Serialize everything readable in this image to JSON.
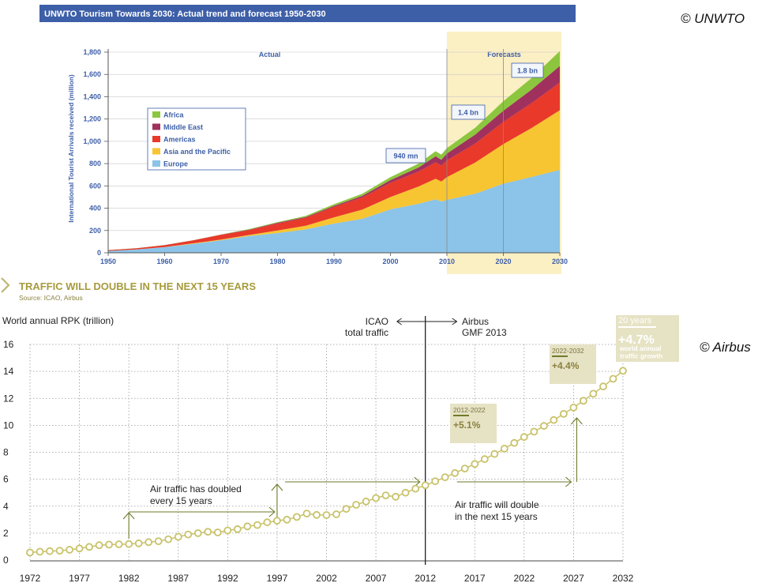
{
  "credits": {
    "top": "© UNWTO",
    "bottom": "© Airbus"
  },
  "chart_data": [
    {
      "type": "area",
      "title": "UNWTO Tourism Towards 2030: Actual trend and forecast 1950-2030",
      "ylabel": "International Tourist Arrivals received (million)",
      "xlabel": "",
      "ylim": [
        0,
        1800
      ],
      "xlim": [
        1950,
        2030
      ],
      "x_ticks": [
        "1950",
        "1960",
        "1970",
        "1980",
        "1990",
        "2000",
        "2010",
        "2020",
        "2030"
      ],
      "y_ticks": [
        "0",
        "200",
        "400",
        "600",
        "800",
        "1,000",
        "1,200",
        "1,400",
        "1,600",
        "1,800"
      ],
      "regions": {
        "actual": "Actual",
        "forecasts": "Forecasts",
        "forecast_start": 2010
      },
      "grid": true,
      "legend_position": "top-left",
      "x": [
        1950,
        1955,
        1960,
        1965,
        1970,
        1975,
        1980,
        1985,
        1990,
        1995,
        2000,
        2005,
        2008,
        2009,
        2010,
        2015,
        2020,
        2025,
        2030
      ],
      "series": [
        {
          "name": "Europe",
          "color": "#8cc3e8",
          "values": [
            17,
            30,
            50,
            80,
            113,
            150,
            177,
            210,
            262,
            305,
            390,
            440,
            480,
            460,
            475,
            530,
            620,
            680,
            744
          ]
        },
        {
          "name": "Asia and the Pacific",
          "color": "#f7c531",
          "values": [
            0.2,
            0.5,
            1,
            5,
            6,
            10,
            23,
            33,
            56,
            82,
            110,
            155,
            184,
            180,
            204,
            280,
            355,
            440,
            535
          ]
        },
        {
          "name": "Americas",
          "color": "#e8392b",
          "values": [
            7,
            10,
            17,
            26,
            42,
            45,
            62,
            70,
            93,
            109,
            128,
            134,
            148,
            141,
            150,
            170,
            199,
            223,
            248
          ]
        },
        {
          "name": "Middle East",
          "color": "#a0315e",
          "values": [
            0.2,
            0.3,
            1,
            1,
            2,
            3,
            7,
            8,
            10,
            14,
            24,
            37,
            55,
            53,
            61,
            80,
            101,
            121,
            149
          ]
        },
        {
          "name": "Africa",
          "color": "#8cc63f",
          "values": [
            0.5,
            1,
            1,
            1,
            2,
            5,
            7,
            10,
            15,
            20,
            26,
            35,
            44,
            46,
            49,
            62,
            85,
            104,
            134
          ]
        }
      ],
      "annotations": [
        {
          "x": 2010,
          "label": "940 mn"
        },
        {
          "x": 2020,
          "label": "1.4 bn"
        },
        {
          "x": 2030,
          "label": "1.8 bn"
        }
      ]
    },
    {
      "type": "line",
      "title": "TRAFFIC WILL DOUBLE IN THE NEXT 15 YEARS",
      "subtitle": "Source: ICAO, Airbus",
      "ylabel": "World annual RPK (trillion)",
      "xlabel": "",
      "ylim": [
        0,
        16
      ],
      "xlim": [
        1972,
        2032
      ],
      "x_ticks": [
        "1972",
        "1977",
        "1982",
        "1987",
        "1992",
        "1997",
        "2002",
        "2007",
        "2012",
        "2017",
        "2022",
        "2027",
        "2032"
      ],
      "y_ticks": [
        "0",
        "2",
        "4",
        "6",
        "8",
        "10",
        "12",
        "14",
        "16"
      ],
      "grid": true,
      "divider": {
        "x": 2012,
        "left": "ICAO\ntotal traffic",
        "right": "Airbus\nGMF 2013"
      },
      "annotations": {
        "past": "Air traffic has doubled\nevery 15 years",
        "future": "Air traffic will double\nin the next 15 years",
        "box1_period": "2012-2022",
        "box1_rate": "+5.1%",
        "box2_period": "2022-2032",
        "box2_rate": "+4.4%",
        "box3_period": "20 years",
        "box3_rate": "+4.7%",
        "box3_note": "world annual\ntraffic growth"
      },
      "x": [
        1972,
        1973,
        1974,
        1975,
        1976,
        1977,
        1978,
        1979,
        1980,
        1981,
        1982,
        1983,
        1984,
        1985,
        1986,
        1987,
        1988,
        1989,
        1990,
        1991,
        1992,
        1993,
        1994,
        1995,
        1996,
        1997,
        1998,
        1999,
        2000,
        2001,
        2002,
        2003,
        2004,
        2005,
        2006,
        2007,
        2008,
        2009,
        2010,
        2011,
        2012,
        2013,
        2014,
        2015,
        2016,
        2017,
        2018,
        2019,
        2020,
        2021,
        2022,
        2023,
        2024,
        2025,
        2026,
        2027,
        2028,
        2029,
        2030,
        2031,
        2032
      ],
      "values": [
        0.56,
        0.62,
        0.66,
        0.7,
        0.77,
        0.86,
        0.98,
        1.1,
        1.15,
        1.17,
        1.19,
        1.24,
        1.33,
        1.4,
        1.55,
        1.73,
        1.9,
        2.0,
        2.1,
        2.05,
        2.2,
        2.3,
        2.5,
        2.6,
        2.8,
        2.92,
        3.0,
        3.2,
        3.45,
        3.35,
        3.34,
        3.4,
        3.8,
        4.1,
        4.35,
        4.6,
        4.8,
        4.7,
        5.0,
        5.3,
        5.55,
        5.85,
        6.15,
        6.46,
        6.79,
        7.13,
        7.49,
        7.87,
        8.27,
        8.69,
        9.13,
        9.53,
        9.95,
        10.39,
        10.85,
        11.32,
        11.82,
        12.34,
        12.88,
        13.45,
        14.04
      ],
      "series_color": "#c9c26a"
    }
  ]
}
